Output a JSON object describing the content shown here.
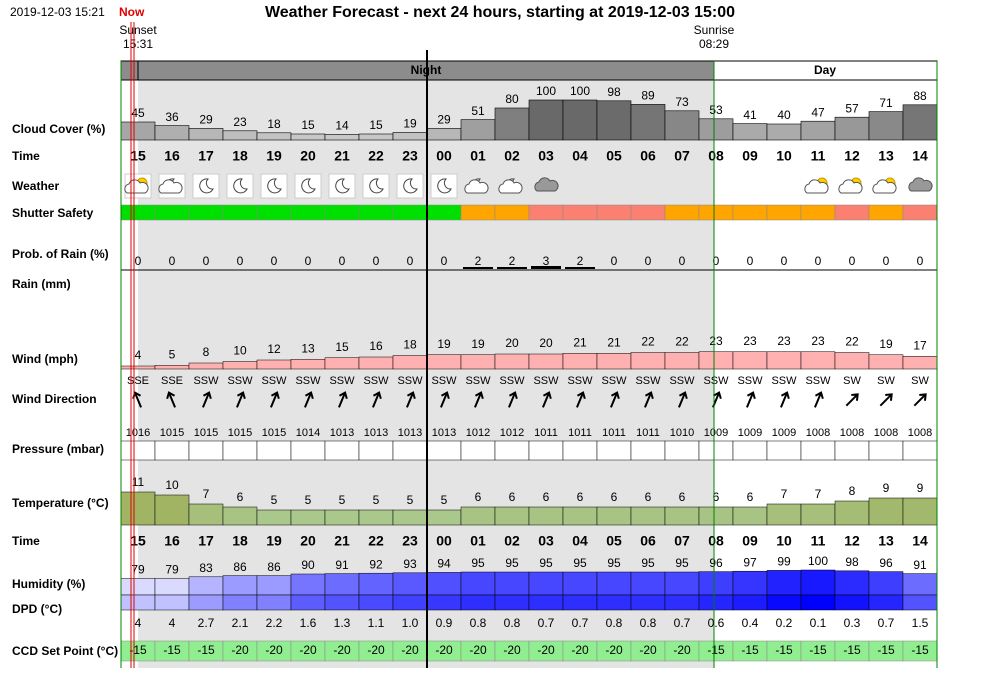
{
  "header": {
    "timestamp": "2019-12-03 15:21",
    "now": "Now",
    "title": "Weather Forecast - next 24 hours, starting at 2019-12-03 15:00",
    "sunset_label": "Sunset",
    "sunset_time": "15:31",
    "sunrise_label": "Sunrise",
    "sunrise_time": "08:29",
    "night": "Night",
    "day": "Day"
  },
  "row_labels": [
    "Cloud Cover (%)",
    "Time",
    "Weather",
    "Shutter Safety",
    "Prob. of Rain (%)",
    "Rain (mm)",
    "Wind (mph)",
    "Wind Direction",
    "Pressure (mbar)",
    "Temperature (°C)",
    "Time",
    "Humidity (%)",
    "DPD (°C)",
    "CCD Set Point (°C)"
  ],
  "hours": [
    "15",
    "16",
    "17",
    "18",
    "19",
    "20",
    "21",
    "22",
    "23",
    "00",
    "01",
    "02",
    "03",
    "04",
    "05",
    "06",
    "07",
    "08",
    "09",
    "10",
    "11",
    "12",
    "13",
    "14"
  ],
  "cloud_cover": [
    45,
    36,
    29,
    23,
    18,
    15,
    14,
    15,
    19,
    29,
    51,
    80,
    100,
    100,
    98,
    89,
    73,
    53,
    41,
    40,
    47,
    57,
    71,
    88
  ],
  "shutter_safety": [
    "#00e000",
    "#00e000",
    "#00e000",
    "#00e000",
    "#00e000",
    "#00e000",
    "#00e000",
    "#00e000",
    "#00e000",
    "#00e000",
    "#ffa500",
    "#ffa500",
    "#fa8072",
    "#fa8072",
    "#fa8072",
    "#fa8072",
    "#ffa500",
    "#ffa500",
    "#ffa500",
    "#ffa500",
    "#ffa500",
    "#fa8072",
    "#ffa500",
    "#fa8072"
  ],
  "rain_probability": [
    0,
    0,
    0,
    0,
    0,
    0,
    0,
    0,
    0,
    0,
    2,
    2,
    3,
    2,
    0,
    0,
    0,
    0,
    0,
    0,
    0,
    0,
    0,
    0
  ],
  "wind": [
    4,
    5,
    8,
    10,
    12,
    13,
    15,
    16,
    18,
    19,
    19,
    20,
    20,
    21,
    21,
    22,
    22,
    23,
    23,
    23,
    23,
    22,
    19,
    17
  ],
  "wind_direction": [
    "SSE",
    "SSE",
    "SSW",
    "SSW",
    "SSW",
    "SSW",
    "SSW",
    "SSW",
    "SSW",
    "SSW",
    "SSW",
    "SSW",
    "SSW",
    "SSW",
    "SSW",
    "SSW",
    "SSW",
    "SSW",
    "SSW",
    "SSW",
    "SSW",
    "SW",
    "SW",
    "SW"
  ],
  "pressure": [
    1016,
    1015,
    1015,
    1015,
    1015,
    1014,
    1013,
    1013,
    1013,
    1013,
    1012,
    1012,
    1011,
    1011,
    1011,
    1011,
    1010,
    1009,
    1009,
    1009,
    1008,
    1008,
    1008,
    1008
  ],
  "temperature": [
    11,
    10,
    7,
    6,
    5,
    5,
    5,
    5,
    5,
    5,
    6,
    6,
    6,
    6,
    6,
    6,
    6,
    6,
    6,
    7,
    7,
    8,
    9,
    9
  ],
  "humidity": [
    79,
    79,
    83,
    86,
    86,
    90,
    91,
    92,
    93,
    94,
    95,
    95,
    95,
    95,
    95,
    95,
    95,
    96,
    97,
    99,
    100,
    98,
    96,
    91
  ],
  "dpd": [
    "4",
    "4",
    "2.7",
    "2.1",
    "2.2",
    "1.6",
    "1.3",
    "1.1",
    "1.0",
    "0.9",
    "0.8",
    "0.8",
    "0.7",
    "0.7",
    "0.8",
    "0.8",
    "0.7",
    "0.6",
    "0.4",
    "0.2",
    "0.1",
    "0.3",
    "0.7",
    "1.5"
  ],
  "ccd_set_point": [
    -15,
    -15,
    -15,
    -20,
    -20,
    -20,
    -20,
    -20,
    -20,
    -20,
    -20,
    -20,
    -20,
    -20,
    -20,
    -20,
    -20,
    -15,
    -15,
    -15,
    -15,
    -15,
    -15,
    -15
  ]
}
